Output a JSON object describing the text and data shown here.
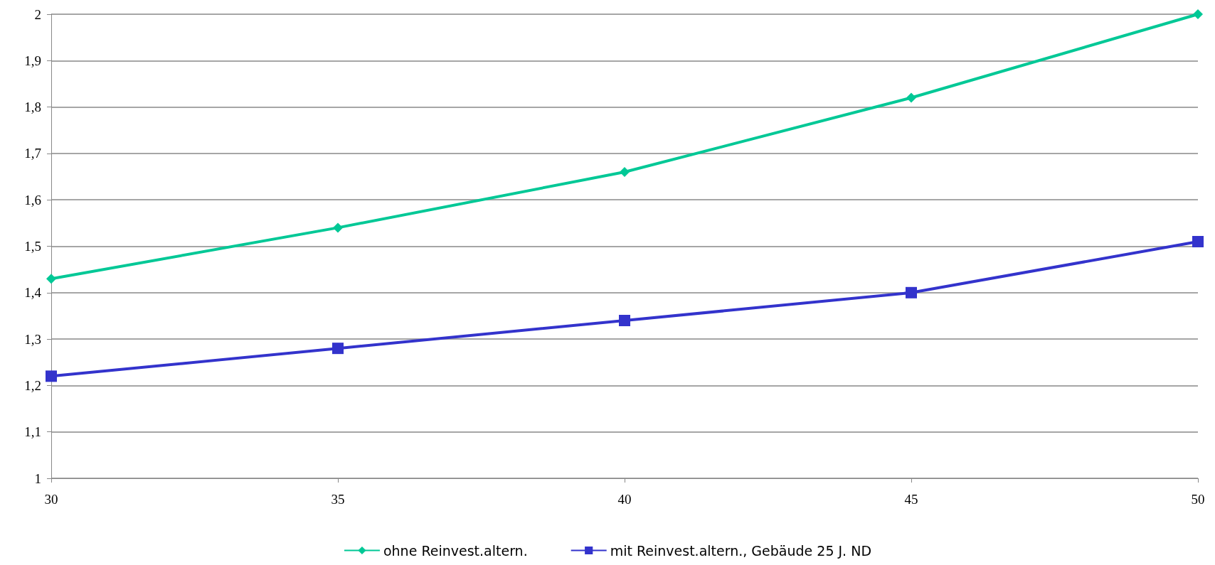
{
  "chart_data": {
    "type": "line",
    "x": [
      30,
      35,
      40,
      45,
      50
    ],
    "series": [
      {
        "name": "ohne Reinvest.altern.",
        "color": "#00c896",
        "marker": "diamond",
        "values": [
          1.43,
          1.54,
          1.66,
          1.82,
          2.0
        ]
      },
      {
        "name": "mit Reinvest.altern., Gebäude 25 J. ND",
        "color": "#3333cc",
        "marker": "square",
        "values": [
          1.22,
          1.28,
          1.34,
          1.4,
          1.51
        ]
      }
    ],
    "xlim": [
      30,
      50
    ],
    "xticks": [
      30,
      35,
      40,
      45,
      50
    ],
    "ylim": [
      1,
      2
    ],
    "yticks": [
      1,
      {
        "value": 1.1,
        "label": "1,1"
      },
      {
        "value": 1.2,
        "label": "1,2"
      },
      {
        "value": 1.3,
        "label": "1,3"
      },
      {
        "value": 1.4,
        "label": "1,4"
      },
      {
        "value": 1.5,
        "label": "1,5"
      },
      {
        "value": 1.6,
        "label": "1,6"
      },
      {
        "value": 1.7,
        "label": "1,7"
      },
      {
        "value": 1.8,
        "label": "1,8"
      },
      {
        "value": 1.9,
        "label": "1,9"
      },
      2
    ],
    "grid": "y",
    "legend": "bottom",
    "line_style": "solid"
  }
}
